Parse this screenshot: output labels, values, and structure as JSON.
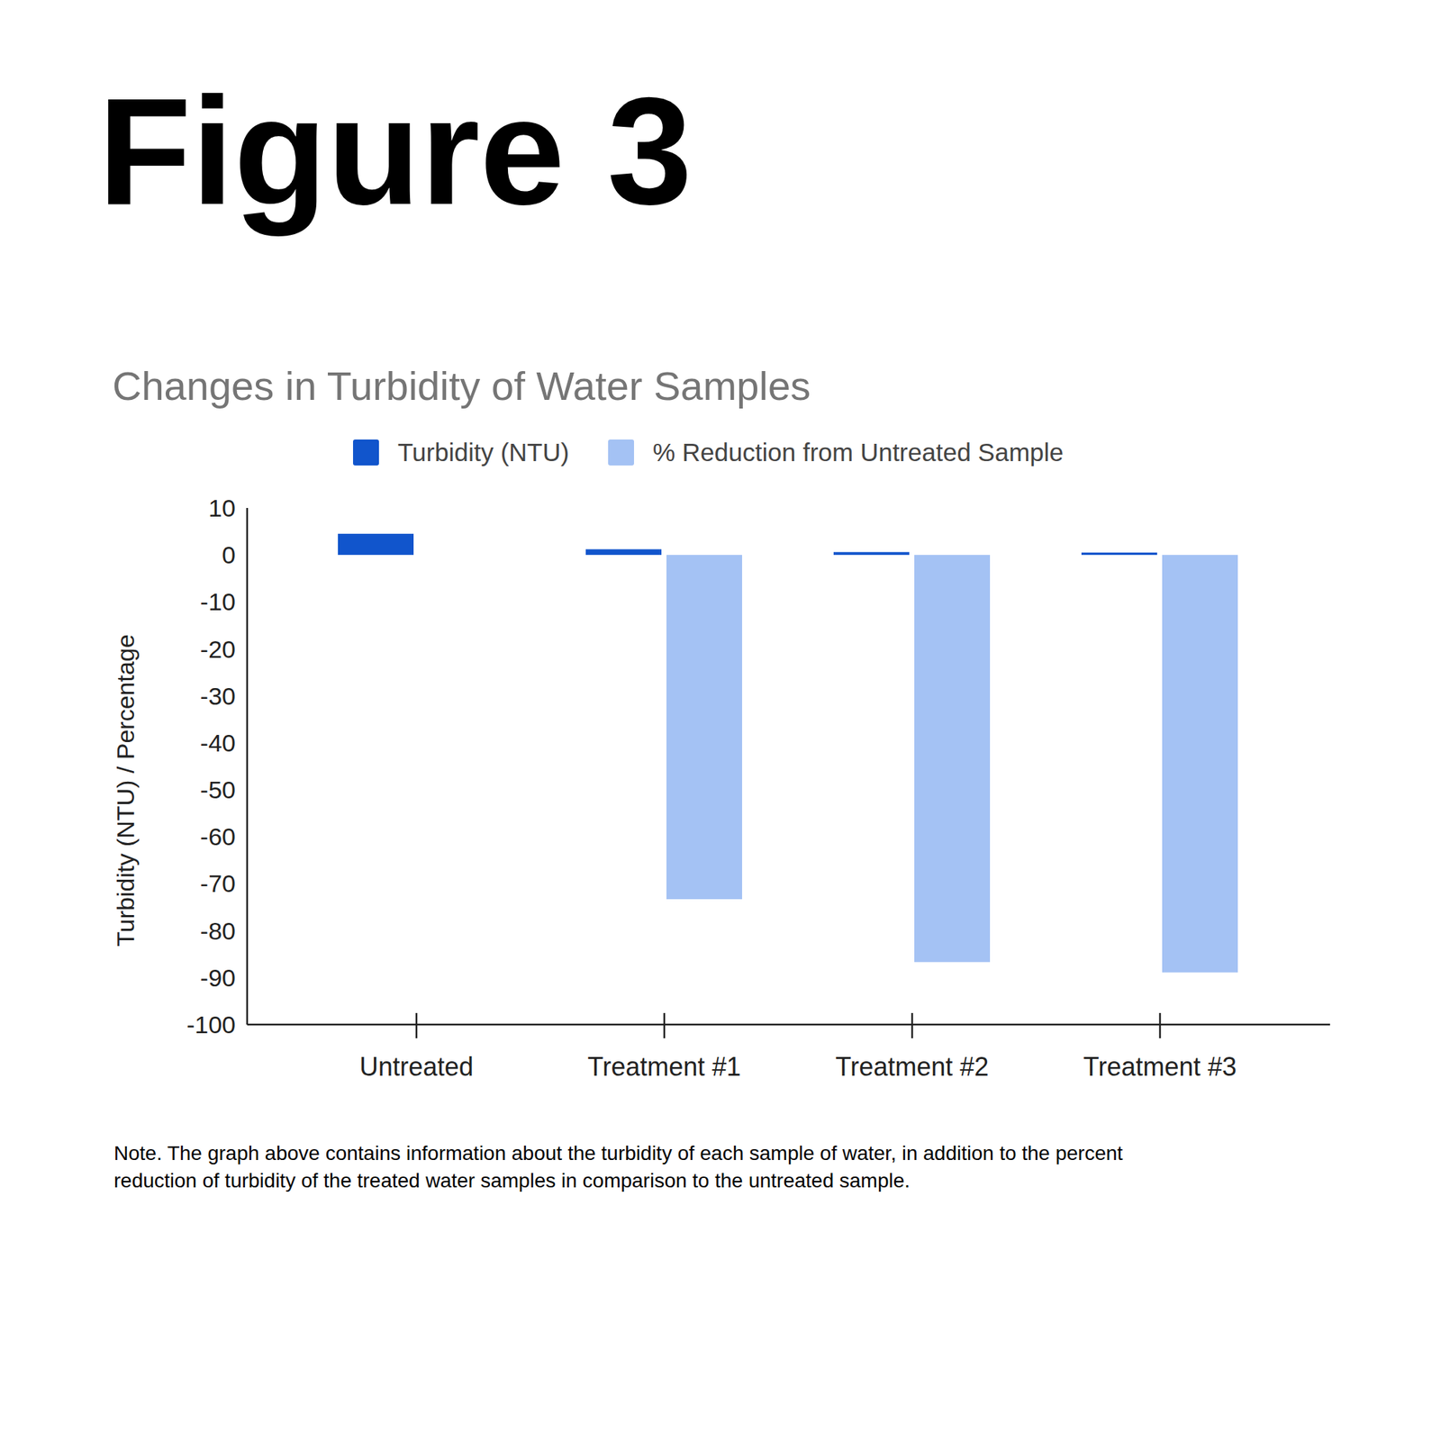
{
  "figure_label": "Figure 3",
  "note": [
    "Note. The graph above contains information about the turbidity of each sample of water, in addition to the percent",
    "reduction of turbidity of the treated water samples in comparison to the untreated sample."
  ],
  "chart_data": {
    "type": "bar",
    "title": "Changes in Turbidity of Water Samples",
    "y_label": "Turbidity (NTU) / Percentage",
    "categories": [
      "Untreated",
      "Treatment #1",
      "Treatment #2",
      "Treatment #3"
    ],
    "series": [
      {
        "name": "Turbidity (NTU)",
        "color": "#1155cc",
        "values": [
          4.5,
          1.2,
          0.6,
          0.5
        ]
      },
      {
        "name": "% Reduction from Untreated Sample",
        "color": "#a4c2f4",
        "values": [
          null,
          -73.3,
          -86.7,
          -88.9
        ]
      }
    ],
    "ylim": [
      -100,
      10
    ],
    "yticks": [
      10,
      0,
      -10,
      -20,
      -30,
      -40,
      -50,
      -60,
      -70,
      -80,
      -90,
      -100
    ],
    "grid": false,
    "legend": "top"
  }
}
